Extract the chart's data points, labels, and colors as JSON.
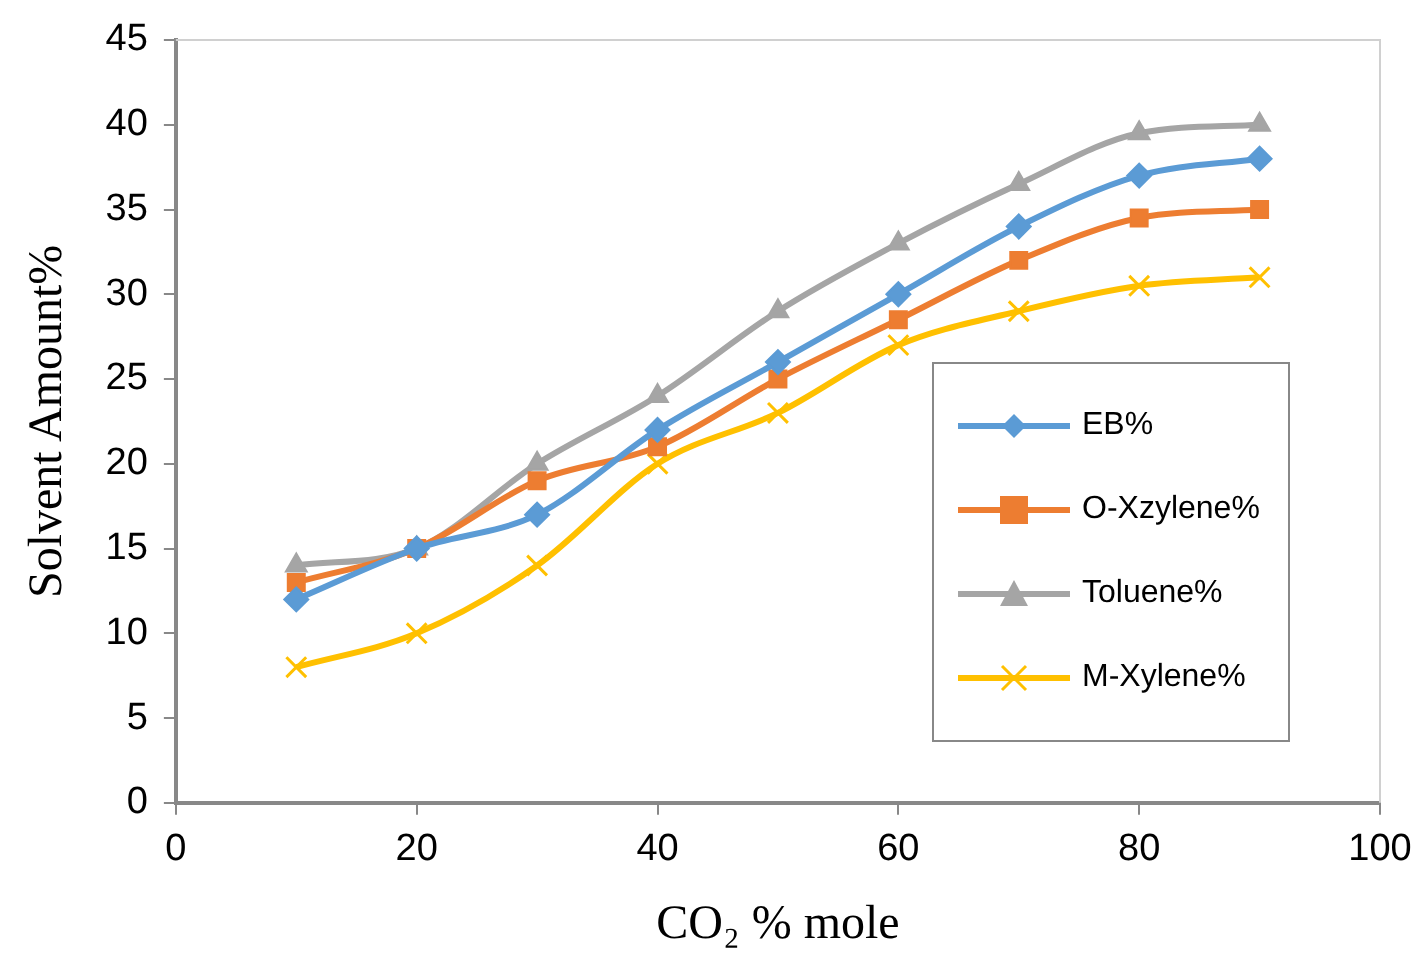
{
  "chart_data": {
    "type": "line",
    "xlabel": "CO₂ % mole",
    "ylabel": "Solvent Amount%",
    "x": [
      10,
      20,
      30,
      40,
      50,
      60,
      70,
      80,
      90
    ],
    "xlim": [
      0,
      100
    ],
    "xticks": [
      0,
      20,
      40,
      60,
      80,
      100
    ],
    "ylim": [
      0,
      45
    ],
    "yticks": [
      0,
      5,
      10,
      15,
      20,
      25,
      30,
      35,
      40,
      45
    ],
    "grid": false,
    "legend": "right",
    "series": [
      {
        "name": "EB%",
        "color": "#5b9bd5",
        "marker": "diamond",
        "values": [
          12,
          15,
          17,
          22,
          26,
          30,
          34,
          37,
          38
        ]
      },
      {
        "name": "O-Xzylene%",
        "color": "#ed7d31",
        "marker": "square",
        "values": [
          13,
          15,
          19,
          21,
          25,
          28.5,
          32,
          34.5,
          35
        ]
      },
      {
        "name": "Toluene%",
        "color": "#a5a5a5",
        "marker": "triangle",
        "values": [
          14,
          15,
          20,
          24,
          29,
          33,
          36.5,
          39.5,
          40
        ]
      },
      {
        "name": "M-Xylene%",
        "color": "#ffc000",
        "marker": "cross",
        "values": [
          8,
          10,
          14,
          20,
          23,
          27,
          29,
          30.5,
          31
        ]
      }
    ]
  }
}
